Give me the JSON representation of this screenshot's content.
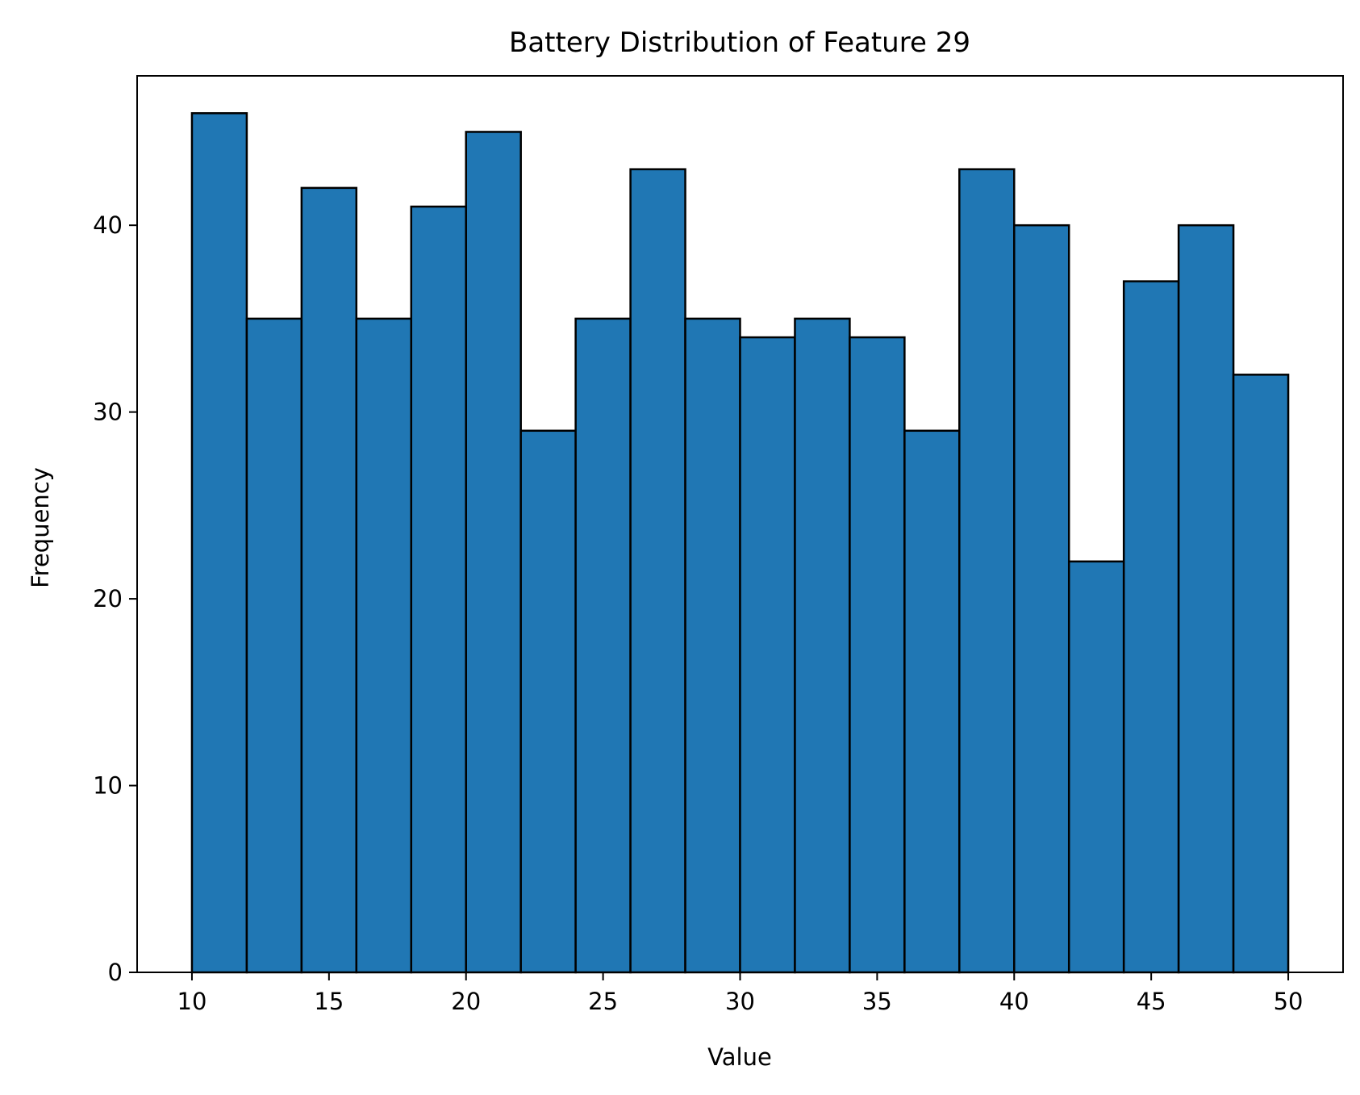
{
  "chart_data": {
    "type": "bar",
    "title": "Battery Distribution of Feature 29",
    "xlabel": "Value",
    "ylabel": "Frequency",
    "bin_edges": [
      10,
      12,
      14,
      16,
      18,
      20,
      22,
      24,
      26,
      28,
      30,
      32,
      34,
      36,
      38,
      40,
      42,
      44,
      46,
      48,
      50
    ],
    "values": [
      46,
      35,
      42,
      35,
      41,
      45,
      29,
      35,
      43,
      35,
      34,
      35,
      34,
      29,
      43,
      40,
      22,
      37,
      40,
      32
    ],
    "xlim": [
      8,
      52
    ],
    "ylim": [
      0,
      48
    ],
    "xticks": [
      10,
      15,
      20,
      25,
      30,
      35,
      40,
      45,
      50
    ],
    "yticks": [
      0,
      10,
      20,
      30,
      40
    ],
    "grid": false,
    "legend": "none",
    "colors": {
      "bar_fill": "#2077b4",
      "bar_edge": "#000000",
      "axes": "#000000"
    }
  }
}
